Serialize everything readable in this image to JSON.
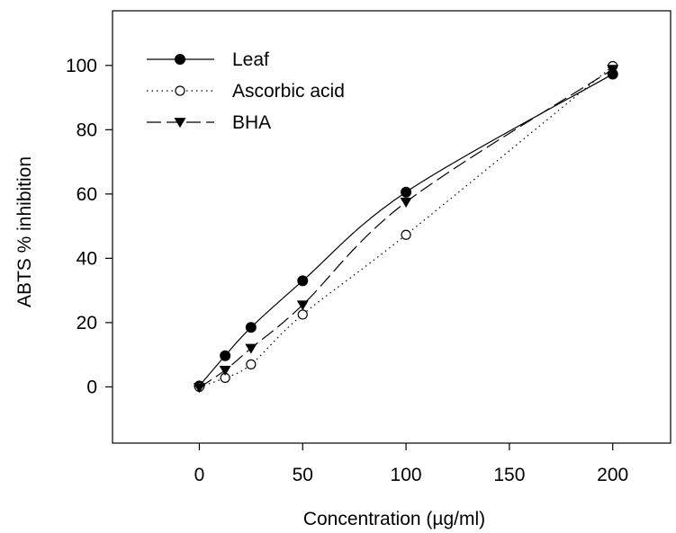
{
  "chart_data": {
    "type": "line",
    "xlabel": "Concentration (µg/ml)",
    "ylabel": "ABTS % inhibition",
    "xlim": [
      -42,
      228
    ],
    "ylim": [
      -17.5,
      117
    ],
    "xticks": [
      0,
      50,
      100,
      150,
      200
    ],
    "yticks": [
      0,
      20,
      40,
      60,
      80,
      100
    ],
    "grid": false,
    "legend_position": "top-left",
    "series": [
      {
        "name": "Leaf",
        "marker": "filled-circle",
        "line_style": "solid",
        "x": [
          0,
          12.5,
          25,
          50,
          100,
          200
        ],
        "y": [
          0.3,
          9.7,
          18.5,
          33.0,
          60.6,
          97.3
        ]
      },
      {
        "name": "Ascorbic acid",
        "marker": "open-circle",
        "line_style": "dotted",
        "x": [
          0,
          12.5,
          25,
          50,
          100,
          200
        ],
        "y": [
          0.0,
          2.8,
          7.0,
          22.5,
          47.3,
          99.8
        ]
      },
      {
        "name": "BHA",
        "marker": "filled-triangle-down",
        "line_style": "dashed",
        "x": [
          0,
          12.5,
          25,
          50,
          100,
          200
        ],
        "y": [
          -0.2,
          5.2,
          12.0,
          25.5,
          57.5,
          98.8
        ]
      }
    ]
  }
}
